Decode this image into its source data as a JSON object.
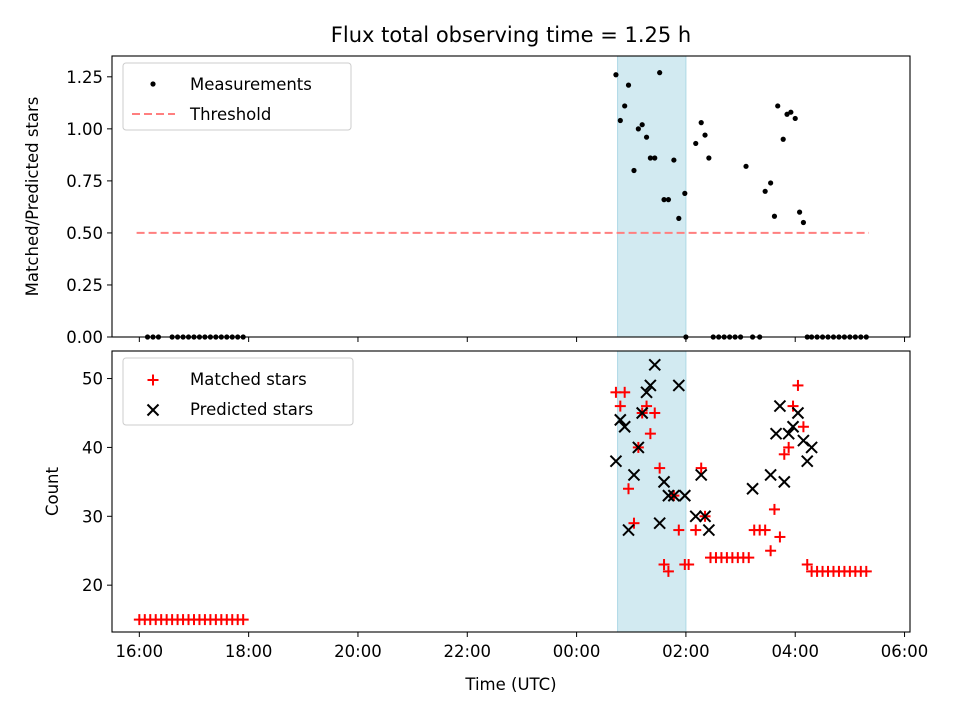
{
  "chart_data": {
    "type": "scatter",
    "title": "Flux total observing time = 1.25 h",
    "xlabel": "Time (UTC)",
    "x_unit": "hours since 00:00 UTC",
    "xlim": [
      -8.5,
      6.1
    ],
    "x_ticks": [
      -8,
      -6,
      -4,
      -2,
      0,
      2,
      4,
      6
    ],
    "x_tick_labels": [
      "16:00",
      "18:00",
      "20:00",
      "22:00",
      "00:00",
      "02:00",
      "04:00",
      "06:00"
    ],
    "shaded_interval": [
      0.75,
      2.0
    ],
    "shade_color": "#add8e6",
    "panels": [
      {
        "id": "ratio",
        "ylabel": "Matched/Predicted stars",
        "ylim": [
          0,
          1.35
        ],
        "y_ticks": [
          0,
          0.25,
          0.5,
          0.75,
          1.0,
          1.25
        ],
        "y_tick_labels": [
          "0.00",
          "0.25",
          "0.50",
          "0.75",
          "1.00",
          "1.25"
        ],
        "legend": {
          "position": "upper-left",
          "measurements_label": "Measurements",
          "threshold_label": "Threshold"
        },
        "threshold": {
          "value": 0.5,
          "x_range": [
            -8.05,
            5.35
          ],
          "color": "#ff7f7f"
        },
        "measurements": {
          "color": "#000000",
          "x": [
            -7.85,
            -7.75,
            -7.65,
            -7.4,
            -7.3,
            -7.2,
            -7.1,
            -7.0,
            -6.9,
            -6.8,
            -6.7,
            -6.6,
            -6.5,
            -6.4,
            -6.3,
            -6.2,
            -6.1,
            0.72,
            0.8,
            0.88,
            0.95,
            1.05,
            1.13,
            1.2,
            1.28,
            1.35,
            1.43,
            1.52,
            1.6,
            1.68,
            1.78,
            1.87,
            1.98,
            2.0,
            2.18,
            2.28,
            2.35,
            2.42,
            2.5,
            2.6,
            2.7,
            2.8,
            2.9,
            3.0,
            3.1,
            3.22,
            3.35,
            3.45,
            3.55,
            3.62,
            3.68,
            3.78,
            3.85,
            3.92,
            4.0,
            4.08,
            4.15,
            4.22,
            4.3,
            4.4,
            4.5,
            4.6,
            4.7,
            4.8,
            4.9,
            5.0,
            5.1,
            5.2,
            5.3
          ],
          "y": [
            0,
            0,
            0,
            0,
            0,
            0,
            0,
            0,
            0,
            0,
            0,
            0,
            0,
            0,
            0,
            0,
            0,
            1.26,
            1.04,
            1.11,
            1.21,
            0.8,
            1.0,
            1.02,
            0.96,
            0.86,
            0.86,
            1.27,
            0.66,
            0.66,
            0.85,
            0.57,
            0.69,
            0,
            0.93,
            1.03,
            0.97,
            0.86,
            0,
            0,
            0,
            0,
            0,
            0,
            0.82,
            0,
            0,
            0.7,
            0.74,
            0.58,
            1.11,
            0.95,
            1.07,
            1.08,
            1.05,
            0.6,
            0.55,
            0,
            0,
            0,
            0,
            0,
            0,
            0,
            0,
            0,
            0,
            0,
            0
          ]
        }
      },
      {
        "id": "count",
        "ylabel": "Count",
        "ylim": [
          13.2,
          54
        ],
        "y_ticks": [
          20,
          30,
          40,
          50
        ],
        "y_tick_labels": [
          "20",
          "30",
          "40",
          "50"
        ],
        "legend": {
          "position": "upper-left"
        },
        "series": [
          {
            "name": "Matched stars",
            "marker": "plus",
            "color": "#ff0000",
            "x": [
              -8.0,
              -7.9,
              -7.8,
              -7.7,
              -7.6,
              -7.5,
              -7.4,
              -7.3,
              -7.2,
              -7.1,
              -7.0,
              -6.9,
              -6.8,
              -6.7,
              -6.6,
              -6.5,
              -6.4,
              -6.3,
              -6.2,
              -6.1,
              0.72,
              0.8,
              0.88,
              0.95,
              1.05,
              1.13,
              1.2,
              1.28,
              1.35,
              1.43,
              1.52,
              1.6,
              1.68,
              1.78,
              1.87,
              1.98,
              2.05,
              2.18,
              2.28,
              2.35,
              2.45,
              2.55,
              2.65,
              2.75,
              2.85,
              2.95,
              3.05,
              3.15,
              3.25,
              3.35,
              3.45,
              3.55,
              3.62,
              3.72,
              3.8,
              3.88,
              3.96,
              4.05,
              4.15,
              4.22,
              4.3,
              4.4,
              4.5,
              4.6,
              4.7,
              4.8,
              4.9,
              5.0,
              5.1,
              5.2,
              5.3
            ],
            "y": [
              15,
              15,
              15,
              15,
              15,
              15,
              15,
              15,
              15,
              15,
              15,
              15,
              15,
              15,
              15,
              15,
              15,
              15,
              15,
              15,
              48,
              46,
              48,
              34,
              29,
              40,
              45,
              46,
              42,
              45,
              37,
              23,
              22,
              33,
              28,
              23,
              23,
              28,
              37,
              30,
              24,
              24,
              24,
              24,
              24,
              24,
              24,
              24,
              28,
              28,
              28,
              25,
              31,
              27,
              39,
              40,
              46,
              49,
              43,
              23,
              22,
              22,
              22,
              22,
              22,
              22,
              22,
              22,
              22,
              22,
              22
            ]
          },
          {
            "name": "Predicted stars",
            "marker": "x",
            "color": "#000000",
            "x": [
              0.72,
              0.8,
              0.88,
              0.95,
              1.05,
              1.13,
              1.2,
              1.28,
              1.35,
              1.43,
              1.52,
              1.6,
              1.68,
              1.78,
              1.87,
              1.98,
              2.18,
              2.28,
              2.35,
              2.42,
              3.22,
              3.55,
              3.65,
              3.72,
              3.8,
              3.88,
              3.96,
              4.05,
              4.15,
              4.22,
              4.3
            ],
            "y": [
              38,
              44,
              43,
              28,
              36,
              40,
              45,
              48,
              49,
              52,
              29,
              35,
              33,
              33,
              49,
              33,
              30,
              36,
              30,
              28,
              34,
              36,
              42,
              46,
              35,
              42,
              43,
              45,
              41,
              38,
              40
            ]
          }
        ]
      }
    ]
  }
}
